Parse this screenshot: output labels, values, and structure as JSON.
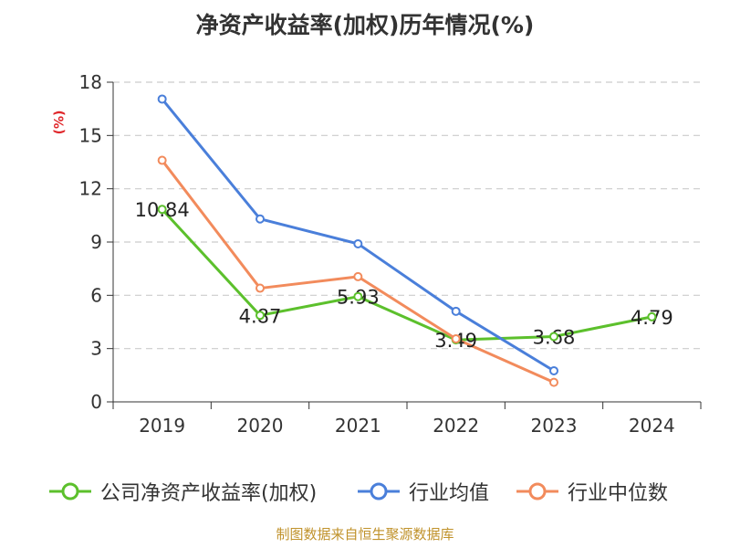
{
  "title": "净资产收益率(加权)历年情况(%)",
  "footer": "制图数据来自恒生聚源数据库",
  "colors": {
    "green": "#5cc02c",
    "blue": "#4a7fda",
    "orange": "#f28b5c",
    "grid": "#cccccc",
    "axis": "#333333"
  },
  "chart_data": {
    "type": "line",
    "title": "净资产收益率(加权)历年情况(%)",
    "ylabel": "(%)",
    "categories": [
      "2019",
      "2020",
      "2021",
      "2022",
      "2023",
      "2024"
    ],
    "ylim": [
      0,
      18
    ],
    "yticks": [
      0,
      3,
      6,
      9,
      12,
      15,
      18
    ],
    "grid": true,
    "legend_position": "bottom",
    "series": [
      {
        "name": "公司净资产收益率(加权)",
        "color": "#5cc02c",
        "values": [
          10.84,
          4.87,
          5.93,
          3.49,
          3.68,
          4.79
        ],
        "labels": [
          "10.84",
          "4.87",
          "5.93",
          "3.49",
          "3.68",
          "4.79"
        ]
      },
      {
        "name": "行业均值",
        "color": "#4a7fda",
        "values": [
          17.05,
          10.3,
          8.9,
          5.1,
          1.75,
          null
        ]
      },
      {
        "name": "行业中位数",
        "color": "#f28b5c",
        "values": [
          13.6,
          6.4,
          7.05,
          3.55,
          1.1,
          null
        ]
      }
    ]
  }
}
